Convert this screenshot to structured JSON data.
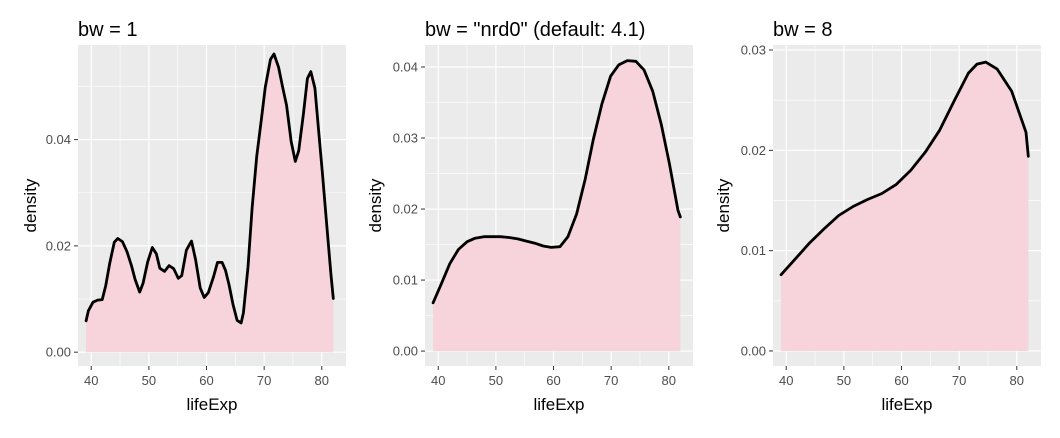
{
  "chart_data": [
    {
      "type": "area",
      "title": "bw = 1",
      "xlabel": "lifeExp",
      "ylabel": "density",
      "xlim": [
        37.7,
        84.2
      ],
      "ylim": [
        -0.0026,
        0.0578
      ],
      "xticks": [
        40,
        50,
        60,
        70,
        80
      ],
      "yticks": [
        0.0,
        0.02,
        0.04
      ],
      "ytick_labels": [
        "0.00",
        "0.02",
        "0.04"
      ],
      "fill_color": "#f7d4dc",
      "line_color": "#000000",
      "panel_color": "#ebebeb",
      "grid": true,
      "x": [
        39.1,
        39.5,
        40.3,
        41.1,
        41.9,
        42.5,
        43.2,
        44.0,
        44.6,
        45.4,
        46.2,
        47.0,
        47.6,
        48.4,
        49.0,
        49.8,
        50.6,
        51.3,
        51.9,
        52.7,
        53.5,
        54.3,
        55.1,
        55.7,
        56.5,
        57.4,
        58.1,
        58.9,
        59.6,
        60.3,
        61.2,
        61.9,
        62.7,
        63.3,
        63.9,
        64.6,
        65.3,
        66.0,
        66.4,
        67.2,
        67.9,
        68.7,
        69.5,
        70.2,
        71.1,
        71.7,
        72.5,
        73.2,
        73.9,
        74.7,
        75.4,
        76.0,
        76.8,
        77.5,
        78.1,
        78.8,
        79.5,
        80.1,
        80.8,
        81.6,
        82.0
      ],
      "y": [
        0.0059,
        0.0078,
        0.0094,
        0.0098,
        0.0099,
        0.0125,
        0.0167,
        0.0207,
        0.0214,
        0.0208,
        0.0189,
        0.0162,
        0.0137,
        0.0113,
        0.013,
        0.017,
        0.0197,
        0.0185,
        0.0158,
        0.0152,
        0.0163,
        0.0157,
        0.0139,
        0.0144,
        0.0192,
        0.0209,
        0.0174,
        0.0121,
        0.0103,
        0.0112,
        0.0141,
        0.0169,
        0.0169,
        0.0154,
        0.0127,
        0.009,
        0.006,
        0.0055,
        0.0074,
        0.016,
        0.0271,
        0.0368,
        0.0437,
        0.0499,
        0.0551,
        0.0561,
        0.0536,
        0.0499,
        0.0464,
        0.0396,
        0.0359,
        0.0379,
        0.0448,
        0.0515,
        0.0528,
        0.0497,
        0.0411,
        0.0337,
        0.0247,
        0.0145,
        0.0101
      ]
    },
    {
      "type": "area",
      "title": "bw = \"nrd0\" (default: 4.1)",
      "xlabel": "lifeExp",
      "ylabel": "density",
      "xlim": [
        37.7,
        84.2
      ],
      "ylim": [
        -0.0021,
        0.0431
      ],
      "xticks": [
        40,
        50,
        60,
        70,
        80
      ],
      "yticks": [
        0.0,
        0.01,
        0.02,
        0.03,
        0.04
      ],
      "ytick_labels": [
        "0.00",
        "0.01",
        "0.02",
        "0.03",
        "0.04"
      ],
      "fill_color": "#f7d4dc",
      "line_color": "#000000",
      "panel_color": "#ebebeb",
      "grid": true,
      "x": [
        39.1,
        40.6,
        42.0,
        43.5,
        45.0,
        46.4,
        47.9,
        49.4,
        50.8,
        52.3,
        53.8,
        55.2,
        56.7,
        58.2,
        59.6,
        61.1,
        62.5,
        64.0,
        65.5,
        66.9,
        68.4,
        69.9,
        71.3,
        72.8,
        74.3,
        75.7,
        77.2,
        78.7,
        80.1,
        81.6,
        82.0
      ],
      "y": [
        0.0068,
        0.0096,
        0.0123,
        0.0143,
        0.0154,
        0.0159,
        0.0161,
        0.0161,
        0.0161,
        0.016,
        0.0158,
        0.0155,
        0.0152,
        0.0148,
        0.0146,
        0.0147,
        0.0161,
        0.0193,
        0.0242,
        0.0298,
        0.0348,
        0.0387,
        0.0403,
        0.0409,
        0.0408,
        0.0396,
        0.0366,
        0.0319,
        0.0264,
        0.0198,
        0.0189
      ]
    },
    {
      "type": "area",
      "title": "bw = 8",
      "xlabel": "lifeExp",
      "ylabel": "density",
      "xlim": [
        37.7,
        84.2
      ],
      "ylim": [
        -0.0015,
        0.0305
      ],
      "xticks": [
        40,
        50,
        60,
        70,
        80
      ],
      "yticks": [
        0.0,
        0.01,
        0.02,
        0.03
      ],
      "ytick_labels": [
        "0.00",
        "0.01",
        "0.02",
        "0.03"
      ],
      "fill_color": "#f7d4dc",
      "line_color": "#000000",
      "panel_color": "#ebebeb",
      "grid": true,
      "x": [
        39.1,
        41.6,
        44.1,
        46.6,
        49.1,
        51.6,
        54.1,
        56.6,
        59.1,
        61.6,
        64.1,
        66.6,
        69.1,
        71.6,
        73.1,
        74.6,
        76.6,
        79.1,
        81.6,
        82.0
      ],
      "y": [
        0.0076,
        0.0092,
        0.0108,
        0.0122,
        0.0135,
        0.0144,
        0.0151,
        0.0157,
        0.0166,
        0.018,
        0.0198,
        0.022,
        0.0249,
        0.0277,
        0.0286,
        0.0288,
        0.0281,
        0.0259,
        0.0218,
        0.0194
      ]
    }
  ]
}
